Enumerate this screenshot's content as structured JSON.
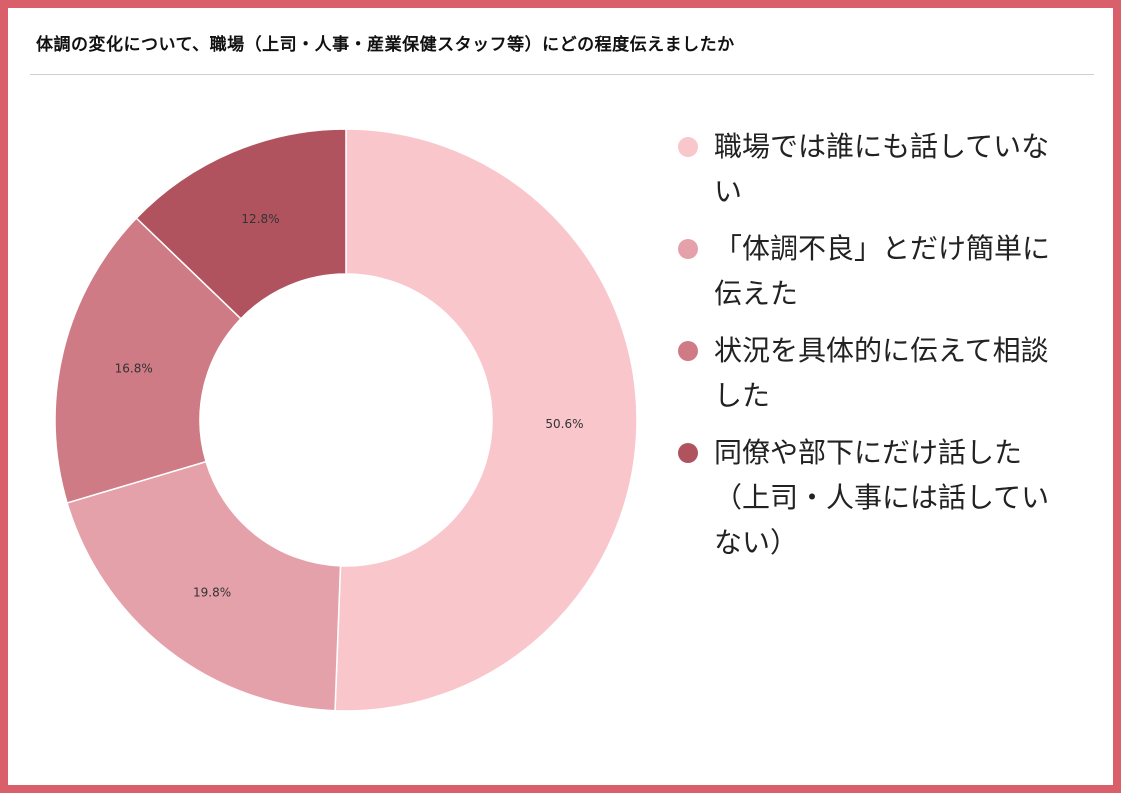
{
  "title": "体調の変化について、職場（上司・人事・産業保健スタッフ等）にどの程度伝えましたか",
  "chart_data": {
    "type": "pie",
    "donut": true,
    "title": "体調の変化について、職場（上司・人事・産業保健スタッフ等）にどの程度伝えましたか",
    "legend_position": "right",
    "slices": [
      {
        "label": "職場では誰にも話していない",
        "value": 50.6,
        "value_label": "50.6%",
        "color": "#f9c6cc"
      },
      {
        "label": "「体調不良」とだけ簡単に伝えた",
        "value": 19.8,
        "value_label": "19.8%",
        "color": "#e5a1aa"
      },
      {
        "label": "状況を具体的に伝えて相談した",
        "value": 16.8,
        "value_label": "16.8%",
        "color": "#cf7b85"
      },
      {
        "label": "同僚や部下にだけ話した（上司・人事には話していない）",
        "value": 12.8,
        "value_label": "12.8%",
        "color": "#b1535f"
      }
    ]
  }
}
